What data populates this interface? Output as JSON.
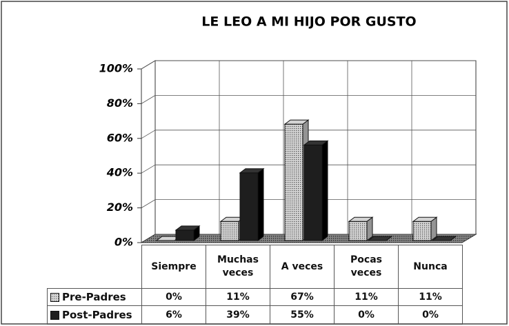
{
  "chart_data": {
    "type": "bar3d",
    "title": "LE LEO A MI HIJO POR GUSTO",
    "categories": [
      "Siempre",
      "Muchas veces",
      "A veces",
      "Pocas veces",
      "Nunca"
    ],
    "series": [
      {
        "name": "Pre-Padres",
        "color": "#d4d4d4",
        "values": [
          0,
          11,
          67,
          11,
          11
        ],
        "value_labels": [
          "0%",
          "11%",
          "67%",
          "11%",
          "11%"
        ]
      },
      {
        "name": "Post-Padres",
        "color": "#1e1e1e",
        "values": [
          6,
          39,
          55,
          0,
          0
        ],
        "value_labels": [
          "6%",
          "39%",
          "55%",
          "0%",
          "0%"
        ]
      }
    ],
    "ylim": [
      0,
      100
    ],
    "yticks": [
      {
        "value": 0,
        "label": "0%"
      },
      {
        "value": 20,
        "label": "20%"
      },
      {
        "value": 40,
        "label": "40%"
      },
      {
        "value": 60,
        "label": "60%"
      },
      {
        "value": 80,
        "label": "80%"
      },
      {
        "value": 100,
        "label": "100%"
      }
    ],
    "grid": true
  }
}
